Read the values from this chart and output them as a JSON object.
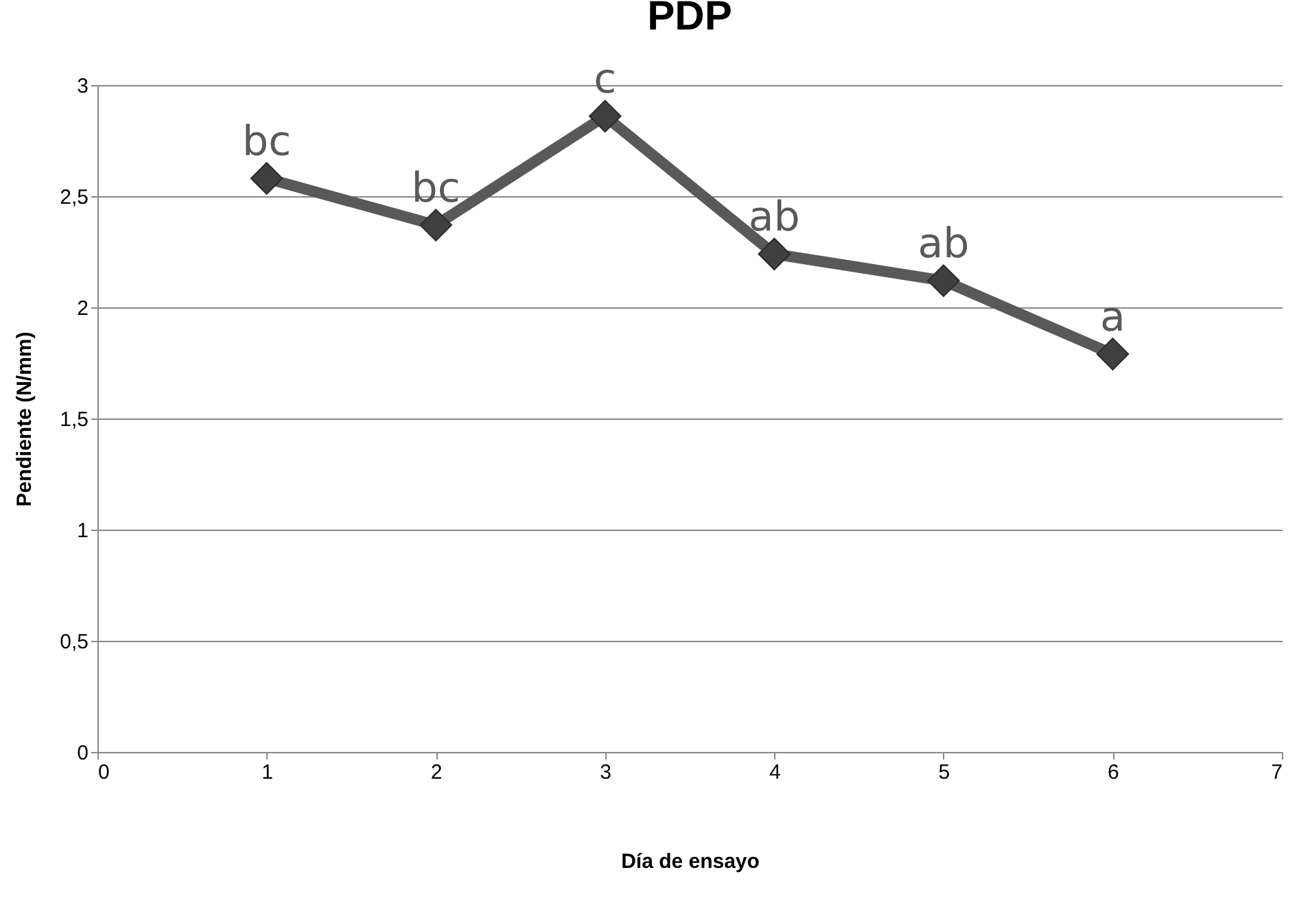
{
  "chart_data": {
    "type": "line",
    "title": "PDP",
    "xlabel": "Día de ensayo",
    "ylabel": "Pendiente (N/mm)",
    "x": [
      1,
      2,
      3,
      4,
      5,
      6
    ],
    "series": [
      {
        "color": "#595959",
        "values": [
          2.58,
          2.37,
          2.86,
          2.24,
          2.12,
          1.79
        ]
      }
    ],
    "xlim": [
      0,
      7
    ],
    "xticks": [
      0,
      1,
      2,
      3,
      4,
      5,
      6,
      7
    ],
    "ylim": [
      0,
      3
    ],
    "yticks": [
      0,
      {
        "value": 0.5,
        "label": "0,5"
      },
      1,
      {
        "value": 1.5,
        "label": "1,5"
      },
      2,
      {
        "value": 2.5,
        "label": "2,5"
      },
      3
    ],
    "grid": "y",
    "marker": "diamond",
    "line_style": "solid",
    "annotations": [
      {
        "text": "bc",
        "x": 1,
        "y": 2.58
      },
      {
        "text": "bc",
        "x": 2,
        "y": 2.37
      },
      {
        "text": "c",
        "x": 3,
        "y": 2.86
      },
      {
        "text": "ab",
        "x": 4,
        "y": 2.24
      },
      {
        "text": "ab",
        "x": 5,
        "y": 2.12
      },
      {
        "text": "a",
        "x": 6,
        "y": 1.79
      }
    ]
  }
}
